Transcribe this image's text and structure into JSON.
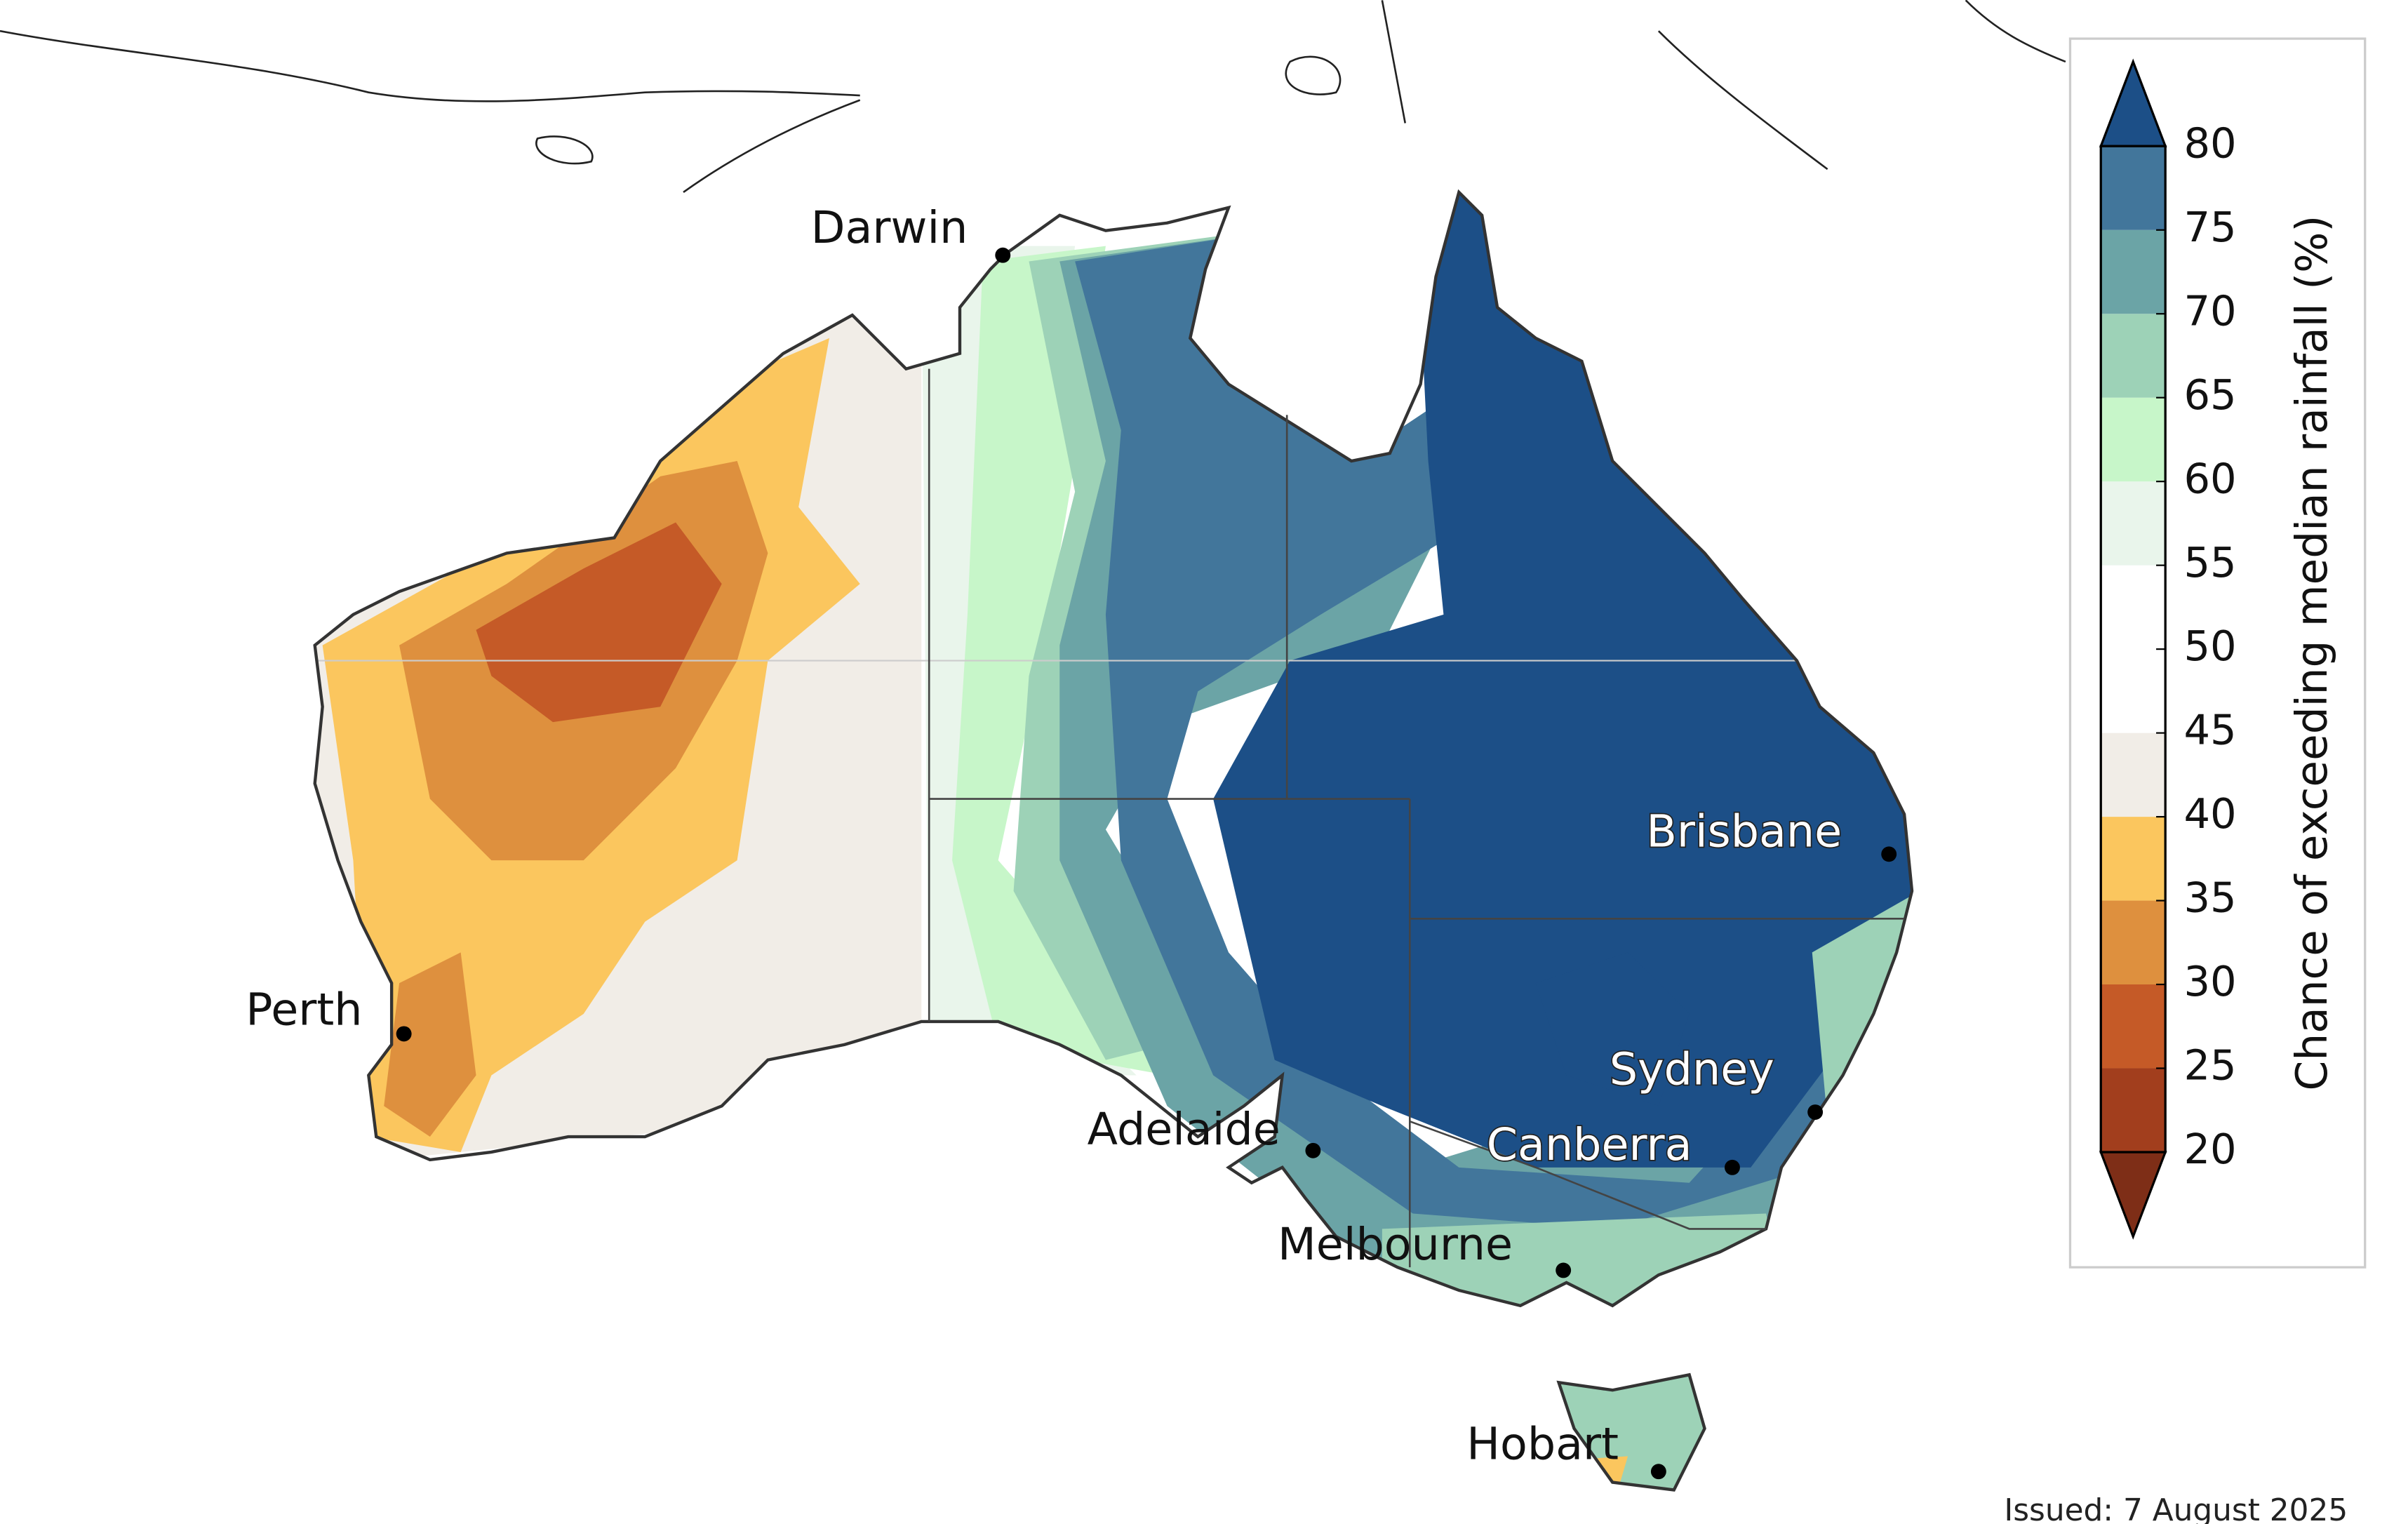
{
  "map": {
    "legend": {
      "title": "Chance of exceeding median rainfall (%)",
      "ticks": [
        20,
        25,
        30,
        35,
        40,
        45,
        50,
        55,
        60,
        65,
        70,
        75,
        80
      ],
      "colors": [
        "#7e2e17",
        "#a23e1d",
        "#c55a27",
        "#de903e",
        "#fbc65e",
        "#f1ede7",
        "#ffffff",
        "#ffffff",
        "#e9f5eb",
        "#c7f6c9",
        "#9dd2b7",
        "#6ba4a6",
        "#42769b",
        "#1c4f87"
      ]
    },
    "cities": [
      "Darwin",
      "Perth",
      "Adelaide",
      "Melbourne",
      "Hobart",
      "Canberra",
      "Sydney",
      "Brisbane"
    ],
    "issued": "Issued: 7 August 2025"
  }
}
